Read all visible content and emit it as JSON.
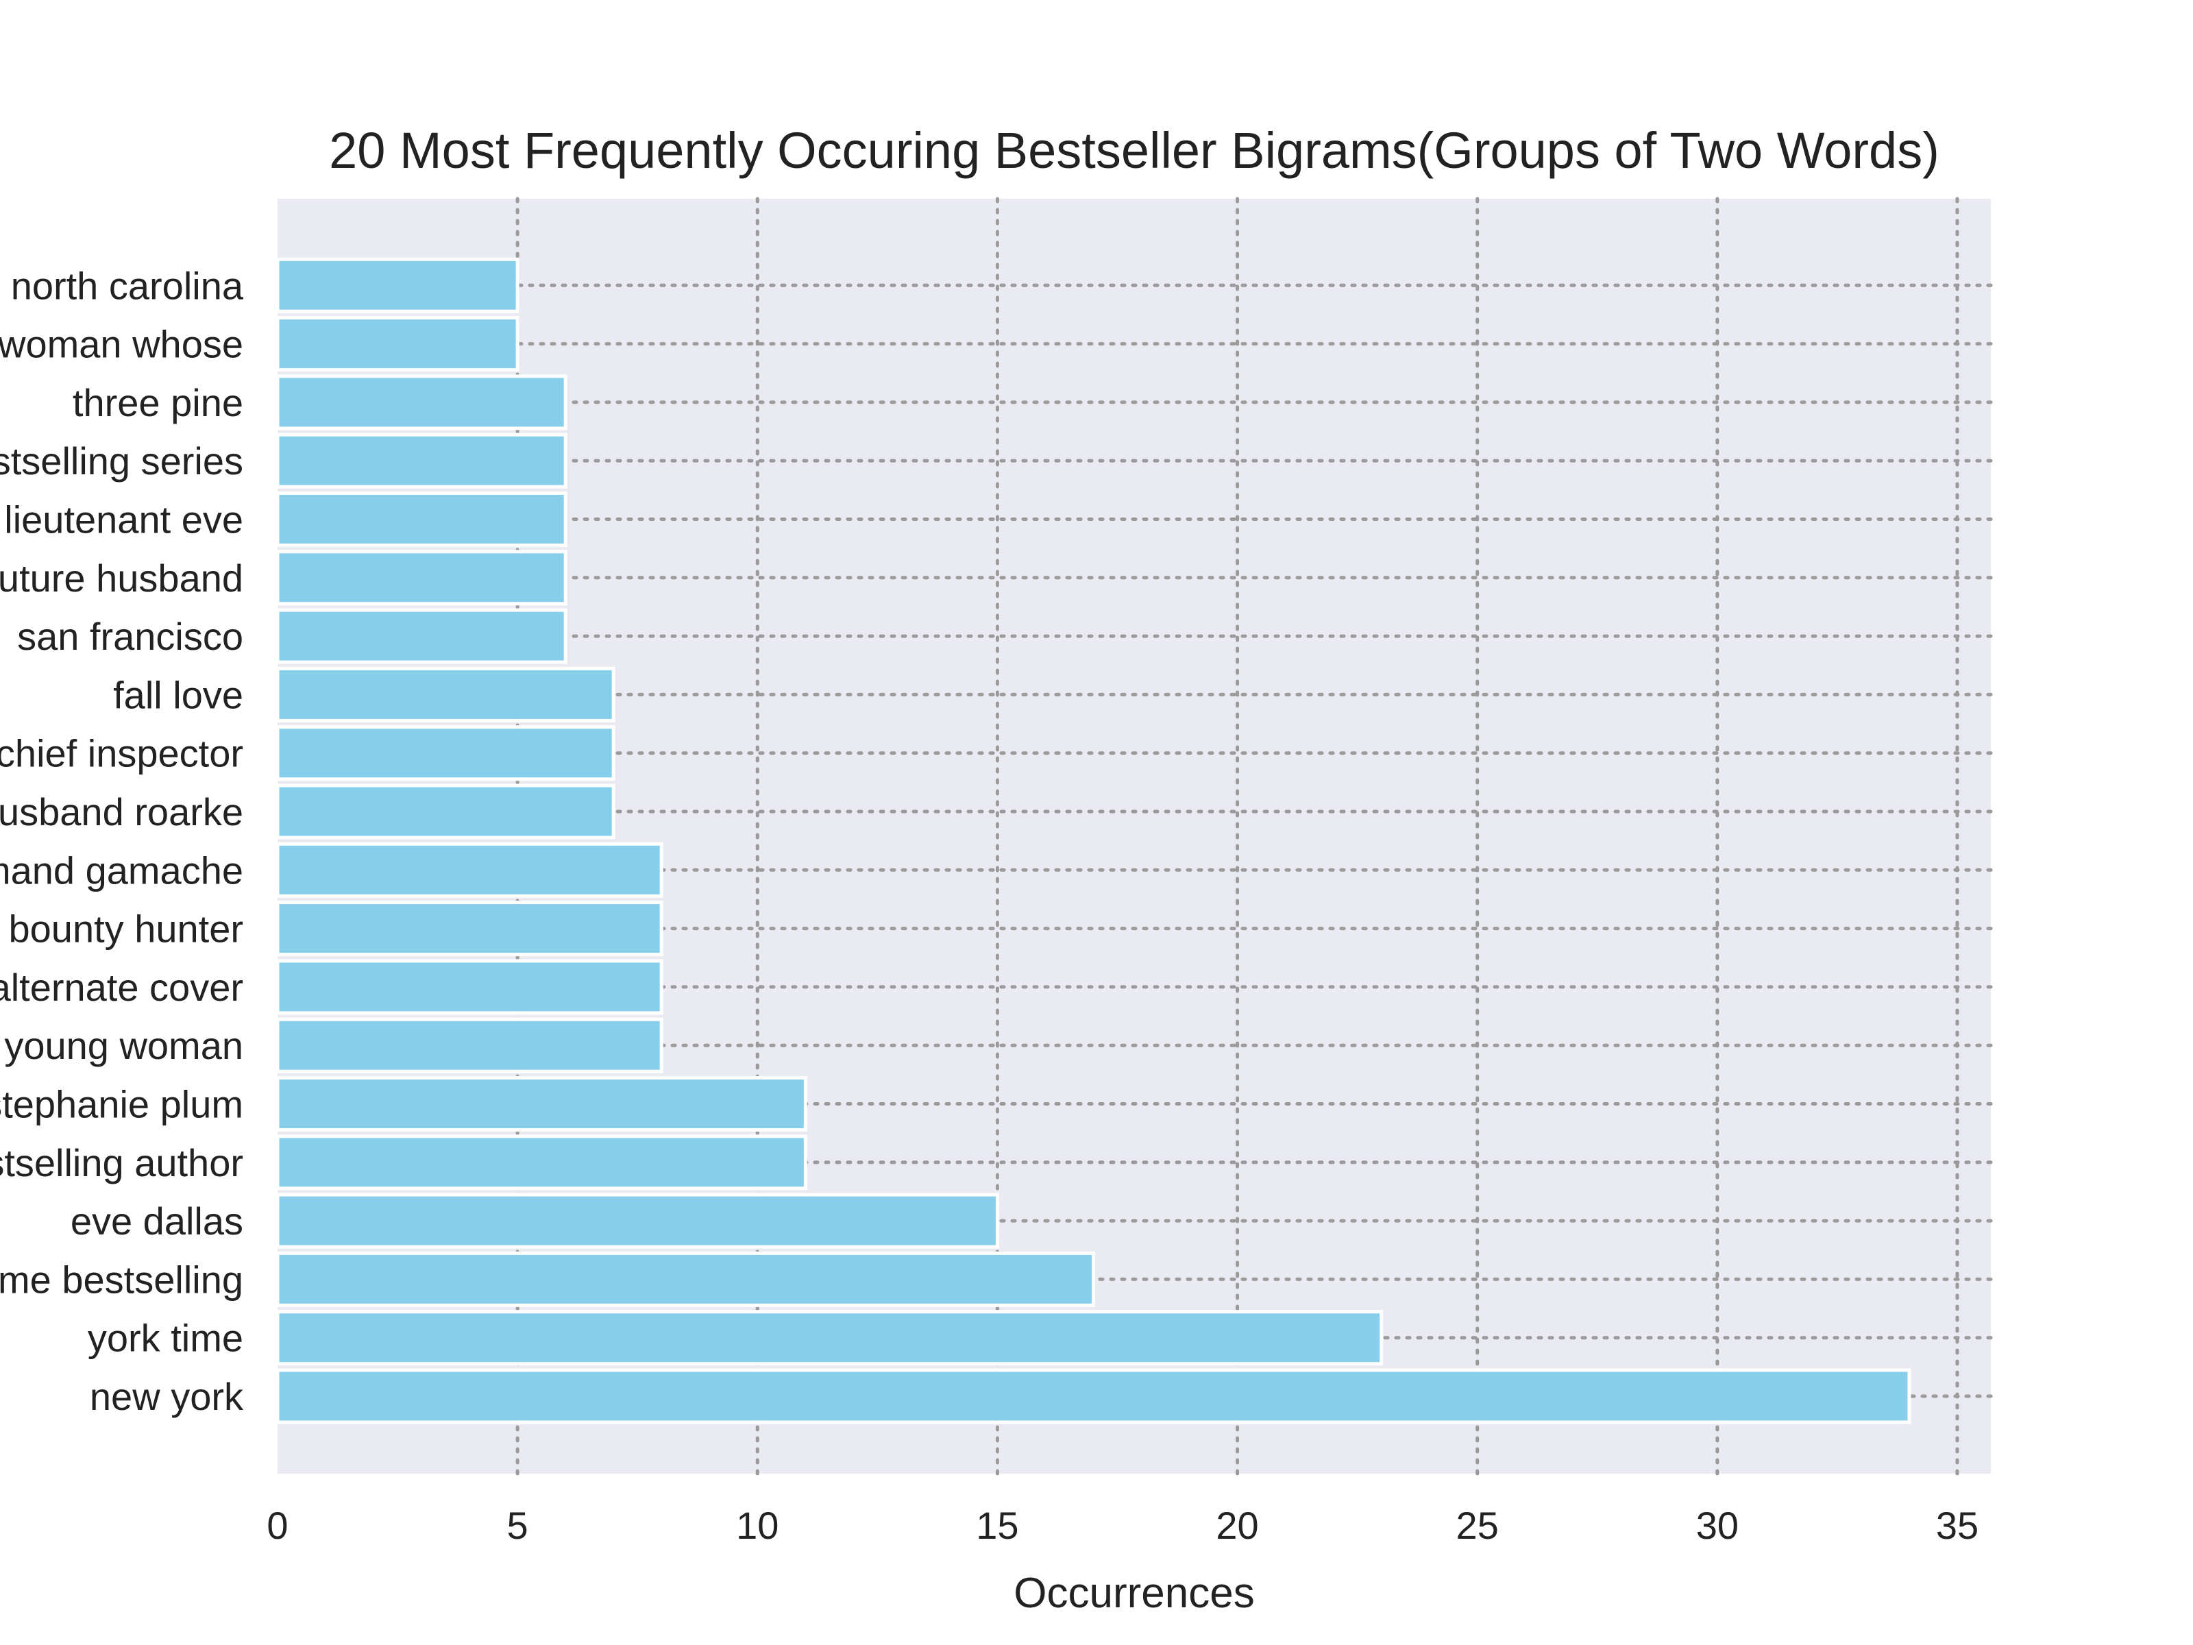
{
  "chart_data": {
    "type": "bar",
    "orientation": "horizontal",
    "title": "20 Most Frequently Occuring Bestseller Bigrams(Groups of Two Words)",
    "xlabel": "Occurrences",
    "ylabel": "",
    "xlim": [
      0,
      35.7
    ],
    "xticks": [
      0,
      5,
      10,
      15,
      20,
      25,
      30,
      35
    ],
    "grid": true,
    "colors": {
      "bar": "#87ceeb",
      "plot_background": "#eaeaf2",
      "grid": "#9a9a9a"
    },
    "categories": [
      "new york",
      "york time",
      "time bestselling",
      "eve dallas",
      "bestselling author",
      "stephanie plum",
      "young woman",
      "alternate cover",
      "bounty hunter",
      "armand gamache",
      "husband roarke",
      "chief inspector",
      "fall love",
      "san francisco",
      "future husband",
      "lieutenant eve",
      "bestselling series",
      "three pine",
      "woman whose",
      "north carolina"
    ],
    "values": [
      34,
      23,
      17,
      15,
      11,
      11,
      8,
      8,
      8,
      8,
      7,
      7,
      7,
      6,
      6,
      6,
      6,
      6,
      5,
      5
    ]
  }
}
